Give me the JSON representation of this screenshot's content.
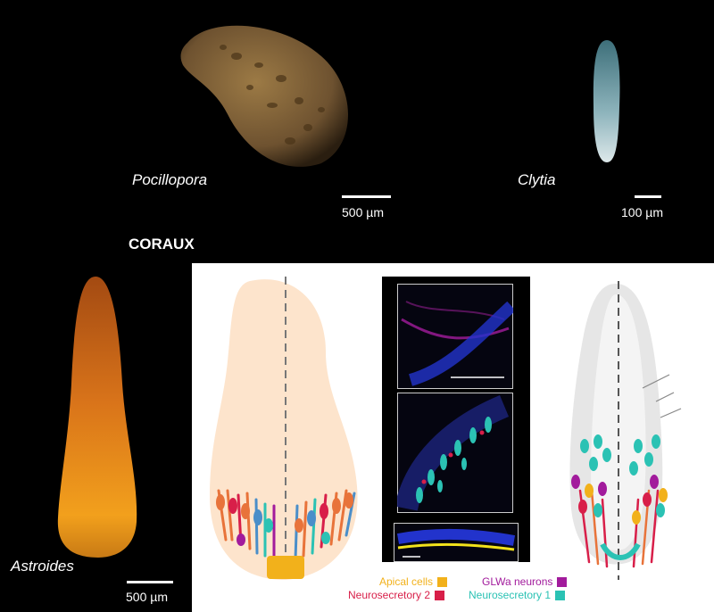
{
  "specimens": {
    "pocillopora": {
      "name": "Pocillopora",
      "scale": "500 µm"
    },
    "clytia": {
      "name": "Clytia",
      "scale": "100 µm"
    },
    "astroides": {
      "name": "Astroides",
      "scale": "500 µm"
    }
  },
  "heading": "CORAUX",
  "legend": [
    {
      "label": "Apical cells",
      "color": "#f2b11b"
    },
    {
      "label": "GLWa neurons",
      "color": "#a21b9c"
    },
    {
      "label": "Neurosecretory 2",
      "color": "#d81f49"
    },
    {
      "label": "Neurosecretory 1",
      "color": "#2bc2b4"
    }
  ],
  "colors": {
    "larva_fill": "#fde4cc",
    "clytia_fill": "#e6e6e6",
    "neuron_orange": "#e8733a",
    "neuron_blue": "#4a8ec9"
  }
}
